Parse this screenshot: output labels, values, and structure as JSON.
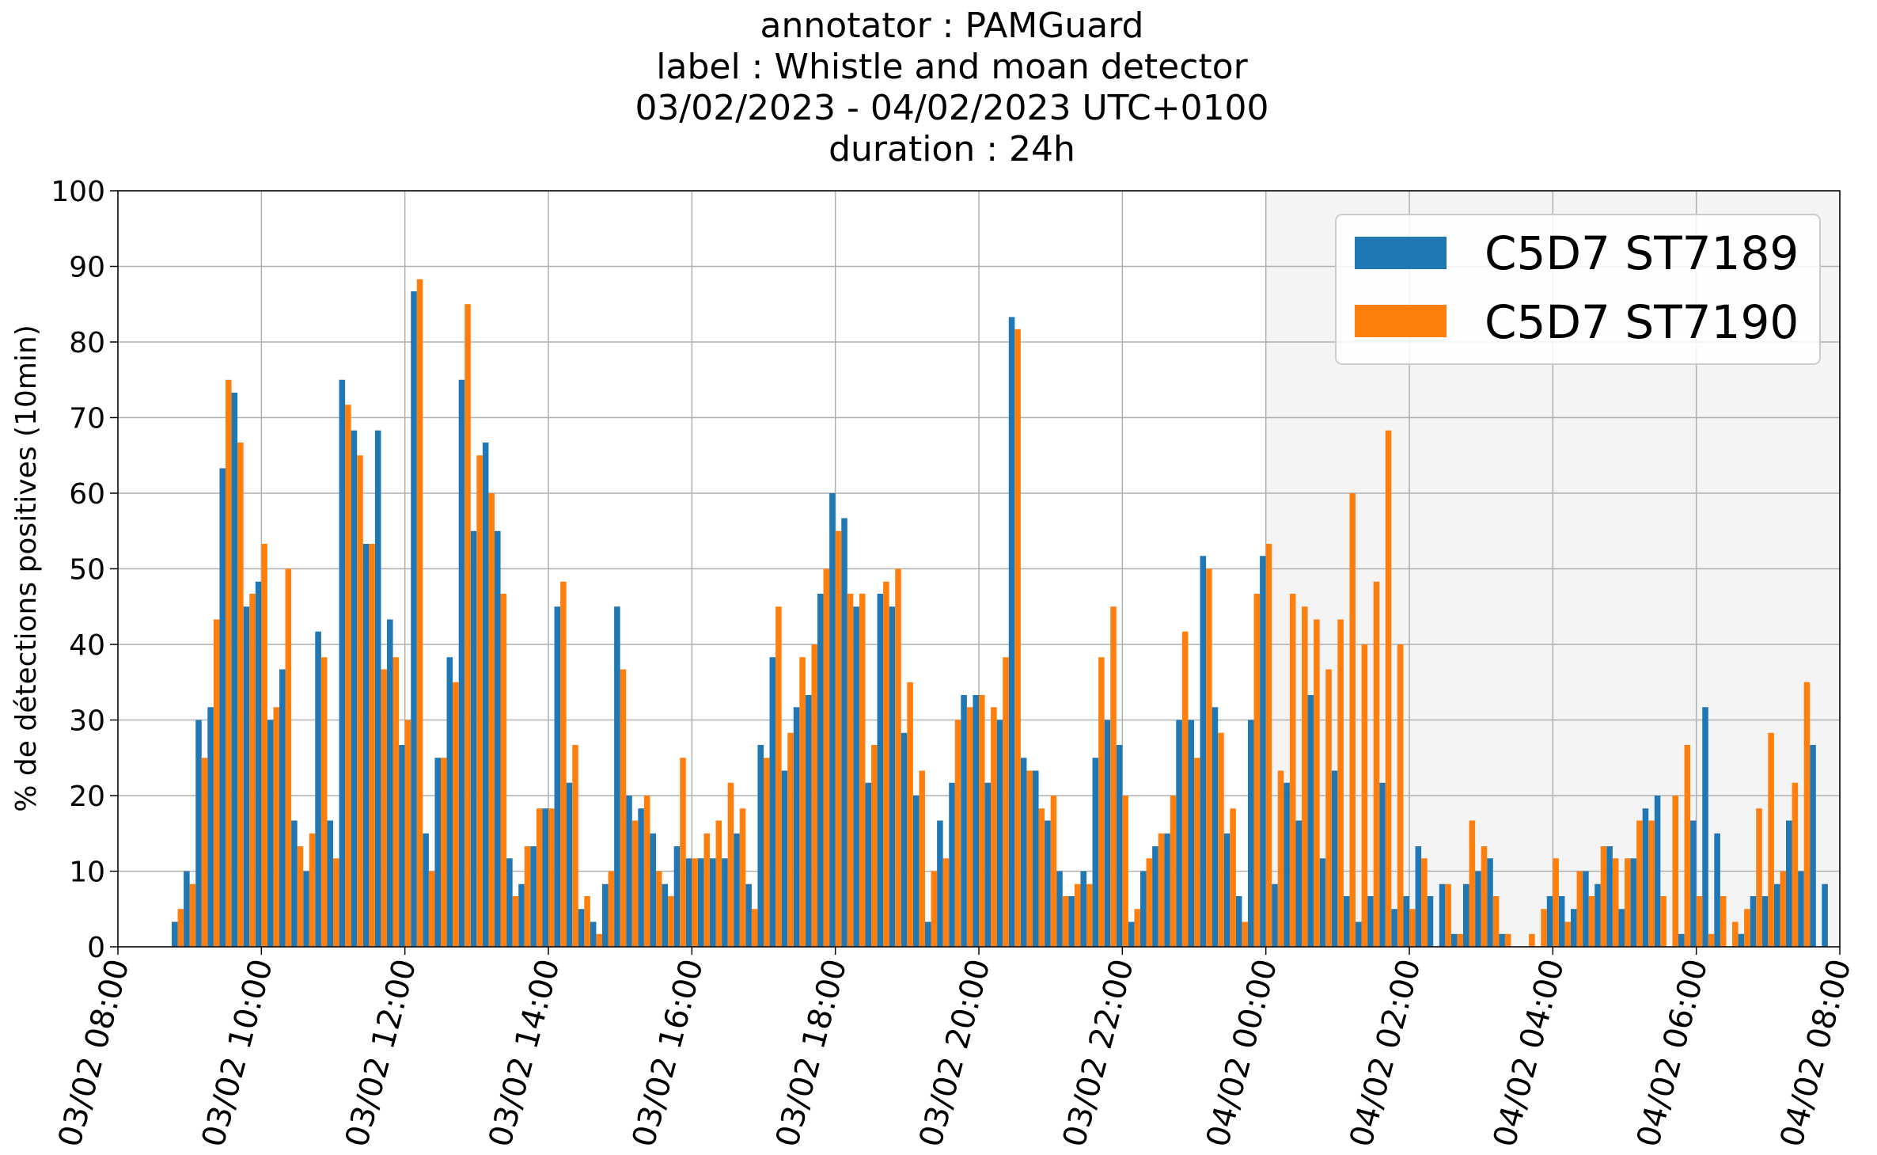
{
  "chart_data": {
    "type": "bar",
    "title_lines": [
      "annotator : PAMGuard",
      "label : Whistle and moan detector",
      "03/02/2023 - 04/02/2023 UTC+0100",
      "duration : 24h"
    ],
    "ylabel": "% de détections positives (10min)",
    "xlabel": "",
    "ylim": [
      0,
      100
    ],
    "yticks": [
      "0",
      "10",
      "20",
      "30",
      "40",
      "50",
      "60",
      "70",
      "80",
      "90",
      "100"
    ],
    "xlim": [
      "03/02 08:00",
      "04/02 08:00"
    ],
    "xticks": [
      "03/02 08:00",
      "03/02 10:00",
      "03/02 12:00",
      "03/02 14:00",
      "03/02 16:00",
      "03/02 18:00",
      "03/02 20:00",
      "03/02 22:00",
      "04/02 00:00",
      "04/02 02:00",
      "04/02 04:00",
      "04/02 06:00",
      "04/02 08:00"
    ],
    "grid": true,
    "legend_position": "top-right",
    "shaded_region": {
      "from": "04/02 00:00",
      "to": "04/02 08:00",
      "color": "#f4f4f4"
    },
    "bin_minutes": 10,
    "first_bin": "03/02 08:50",
    "series": [
      {
        "name": "C5D7 ST7189",
        "color": "#1f77b4",
        "values": [
          3.3,
          10,
          30,
          31.7,
          63.3,
          73.3,
          45,
          48.3,
          30,
          36.7,
          16.7,
          10,
          41.7,
          16.7,
          75,
          68.3,
          53.3,
          68.3,
          43.3,
          26.7,
          86.7,
          15,
          25,
          38.3,
          75,
          55,
          66.7,
          55,
          11.7,
          8.3,
          13.3,
          18.3,
          45,
          21.7,
          5,
          3.3,
          8.3,
          45,
          20,
          18.3,
          15,
          8.3,
          13.3,
          11.7,
          11.7,
          11.7,
          11.7,
          15,
          8.3,
          26.7,
          38.3,
          23.3,
          31.7,
          33.3,
          46.7,
          60,
          56.7,
          45,
          21.7,
          46.7,
          45,
          28.3,
          20,
          3.3,
          16.7,
          21.7,
          33.3,
          33.3,
          21.7,
          30,
          83.3,
          25,
          23.3,
          16.7,
          10,
          6.7,
          10,
          25,
          30,
          26.7,
          3.3,
          10,
          13.3,
          15,
          30,
          30,
          51.7,
          31.7,
          15,
          6.7,
          30,
          51.7,
          8.3,
          21.7,
          16.7,
          33.3,
          11.7,
          23.3,
          6.7,
          3.3,
          6.7,
          21.7,
          5,
          6.7,
          13.3,
          6.7,
          8.3,
          1.7,
          8.3,
          10,
          11.7,
          1.7,
          0,
          0,
          0,
          6.7,
          6.7,
          5,
          10,
          8.3,
          13.3,
          5,
          11.7,
          18.3,
          20,
          0,
          1.7,
          16.7,
          31.7,
          15,
          0,
          1.7,
          6.7,
          6.7,
          8.3,
          16.7,
          10,
          26.7,
          8.3
        ],
        "values_tail_note": ""
      },
      {
        "name": "C5D7 ST7190",
        "color": "#ff7f0e",
        "values": [
          5,
          8.3,
          25,
          43.3,
          75,
          66.7,
          46.7,
          53.3,
          31.7,
          50,
          13.3,
          15,
          38.3,
          11.7,
          71.7,
          65,
          53.3,
          36.7,
          38.3,
          30,
          88.3,
          10,
          25,
          35,
          85,
          65,
          60,
          46.7,
          6.7,
          13.3,
          18.3,
          18.3,
          48.3,
          26.7,
          6.7,
          1.7,
          10,
          36.7,
          16.7,
          20,
          10,
          6.7,
          25,
          11.7,
          15,
          16.7,
          21.7,
          18.3,
          5,
          25,
          45,
          28.3,
          38.3,
          40,
          50,
          55,
          46.7,
          46.7,
          26.7,
          48.3,
          50,
          35,
          23.3,
          10,
          11.7,
          30,
          31.7,
          33.3,
          31.7,
          38.3,
          81.7,
          23.3,
          18.3,
          20,
          6.7,
          8.3,
          8.3,
          38.3,
          45,
          20,
          5,
          11.7,
          15,
          20,
          41.7,
          25,
          50,
          28.3,
          18.3,
          3.3,
          46.7,
          53.3,
          23.3,
          46.7,
          45,
          43.3,
          36.7,
          43.3,
          60,
          40,
          48.3,
          68.3,
          40,
          5,
          11.7,
          0,
          8.3,
          1.7,
          16.7,
          13.3,
          6.7,
          1.7,
          0,
          1.7,
          5,
          11.7,
          3.3,
          10,
          6.7,
          13.3,
          11.7,
          11.7,
          16.7,
          16.7,
          6.7,
          20,
          26.7,
          6.7,
          1.7,
          6.7,
          3.3,
          5,
          18.3,
          28.3,
          10,
          21.7,
          35
        ]
      }
    ]
  }
}
